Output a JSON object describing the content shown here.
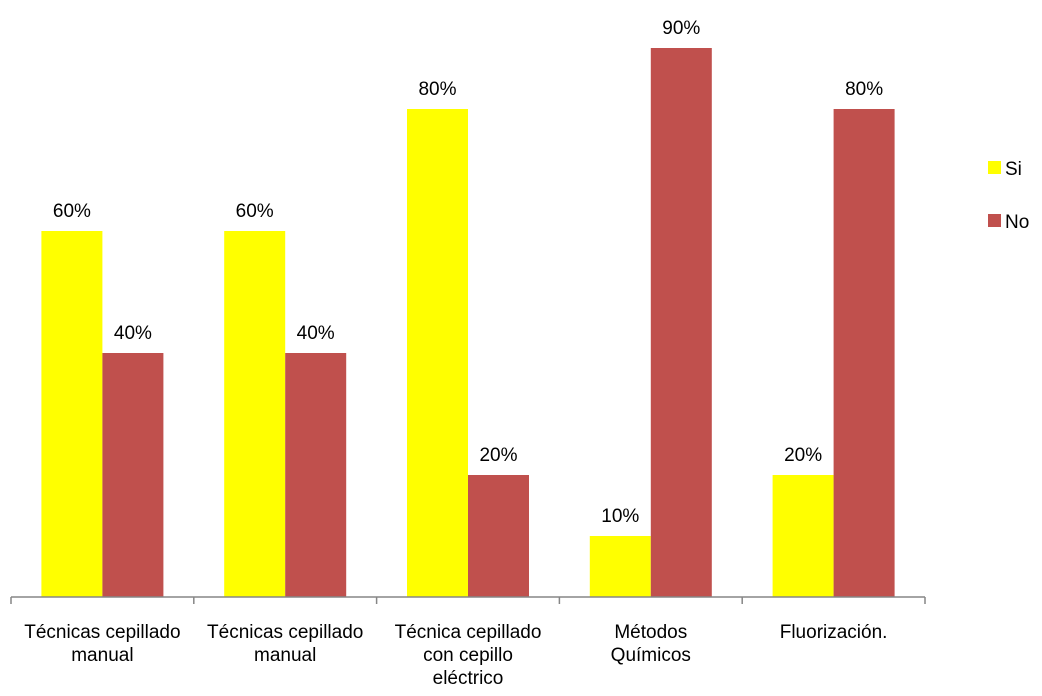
{
  "chart_data": {
    "type": "bar",
    "categories": [
      [
        "Técnicas cepillado",
        "manual"
      ],
      [
        "Técnicas cepillado",
        "manual"
      ],
      [
        "Técnica cepillado",
        "con cepillo",
        "eléctrico"
      ],
      [
        "Métodos",
        "Químicos"
      ],
      [
        "Fluorización."
      ]
    ],
    "series": [
      {
        "name": "Si",
        "color": "#FFFF00",
        "values": [
          60,
          60,
          80,
          10,
          20
        ],
        "labels": [
          "60%",
          "60%",
          "80%",
          "10%",
          "20%"
        ]
      },
      {
        "name": "No",
        "color": "#C0504D",
        "values": [
          40,
          40,
          20,
          90,
          80
        ],
        "labels": [
          "40%",
          "40%",
          "20%",
          "90%",
          "80%"
        ]
      }
    ],
    "ylim": [
      0,
      100
    ],
    "grid": false,
    "legend_position": "right",
    "axis_color": "#868686"
  }
}
